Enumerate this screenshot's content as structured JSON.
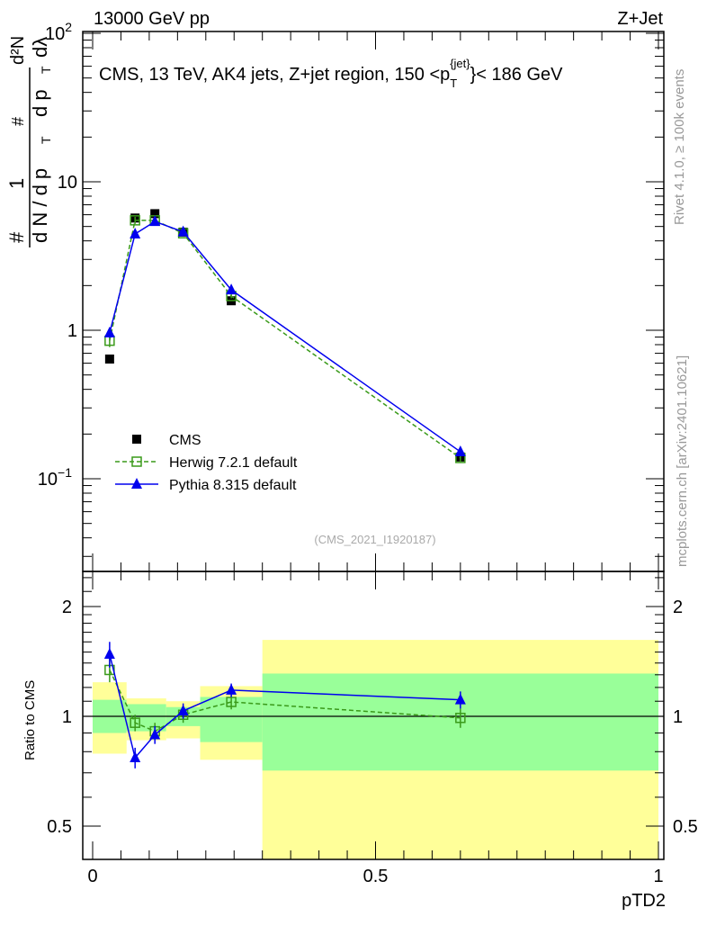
{
  "header": {
    "left": "13000 GeV pp",
    "right": "Z+Jet"
  },
  "side_labels": {
    "rivet": "Rivet 4.1.0, ≥ 100k events",
    "mcplots": "mcplots.cern.ch [arXiv:2401.10621]"
  },
  "chart_data": [
    {
      "type": "line",
      "title": "CMS, 13 TeV, AK4 jets, Z+jet region, 150 <p_T^{jet}< 186 GeV",
      "title_parts": {
        "a": "CMS, 13 TeV, AK4 jets, Z+jet region, 150 <p",
        "sub": "T",
        "sup": "{jet}",
        "b": "}< 186 GeV"
      },
      "ylabel": "1/N dN/dpT d2N/dpT dlambda",
      "ylabel_parts": {
        "hash": "#",
        "one": "1",
        "den": "d N / d p",
        "T": "T",
        "num_top": "d²N",
        "num_bot": "d p",
        "dl": "dλ"
      },
      "yscale": "log",
      "ylim": [
        0.0238,
        105
      ],
      "xlim": [
        -0.03,
        1.01
      ],
      "yticks": [
        {
          "v": 100,
          "label": "10",
          "sup": "2"
        },
        {
          "v": 10,
          "label": "10",
          "sup": ""
        },
        {
          "v": 1,
          "label": "1",
          "sup": ""
        },
        {
          "v": 0.1,
          "label": "10",
          "sup": "−1"
        }
      ],
      "watermark": "(CMS_2021_I1920187)",
      "legend_position": "bottom-left",
      "x": [
        0.03,
        0.075,
        0.11,
        0.16,
        0.245,
        0.65
      ],
      "series": [
        {
          "name": "CMS",
          "color": "#000000",
          "marker": "square-filled",
          "values": [
            0.64,
            5.7,
            6.1,
            4.58,
            1.58,
            0.14
          ],
          "errors": [
            0.02,
            0.15,
            0.15,
            0.1,
            0.04,
            0.005
          ]
        },
        {
          "name": "Herwig 7.2.1 default",
          "color": "#3a9a1a",
          "marker": "square-open",
          "dashed": true,
          "values": [
            0.85,
            5.5,
            5.5,
            4.5,
            1.7,
            0.138
          ],
          "errors": [
            0.08,
            0.3,
            0.3,
            0.15,
            0.06,
            0.008
          ]
        },
        {
          "name": "Pythia 8.315 default",
          "color": "#0000ee",
          "marker": "triangle",
          "values": [
            0.96,
            4.45,
            5.4,
            4.6,
            1.87,
            0.152
          ],
          "errors": [
            0.07,
            0.25,
            0.25,
            0.15,
            0.06,
            0.01
          ]
        }
      ]
    },
    {
      "type": "line",
      "ylabel": "Ratio to CMS",
      "xlabel": "pTD2",
      "yscale": "log",
      "ylim": [
        0.405,
        2.5
      ],
      "yticks": [
        {
          "v": 2,
          "label": "2"
        },
        {
          "v": 1,
          "label": "1"
        },
        {
          "v": 0.5,
          "label": "0.5"
        }
      ],
      "xticks": [
        {
          "v": 0,
          "label": "0"
        },
        {
          "v": 0.5,
          "label": "0.5"
        },
        {
          "v": 1,
          "label": "1"
        }
      ],
      "bands": {
        "edges": [
          0,
          0.06,
          0.13,
          0.19,
          0.3,
          1.0
        ],
        "yellow": [
          [
            0.79,
            1.24
          ],
          [
            0.86,
            1.12
          ],
          [
            0.87,
            1.1
          ],
          [
            0.76,
            1.21
          ],
          [
            0.4,
            1.62
          ]
        ],
        "green": [
          [
            0.9,
            1.11
          ],
          [
            0.91,
            1.08
          ],
          [
            0.94,
            1.06
          ],
          [
            0.85,
            1.13
          ],
          [
            0.71,
            1.31
          ]
        ],
        "colors": {
          "yellow": "#ffff99",
          "green": "#99ff99"
        }
      },
      "x": [
        0.03,
        0.075,
        0.11,
        0.16,
        0.245,
        0.65
      ],
      "series": [
        {
          "name": "Herwig 7.2.1 default",
          "color": "#3a9a1a",
          "values": [
            1.34,
            0.96,
            0.91,
            1.01,
            1.095,
            0.99
          ],
          "errors": [
            0.1,
            0.05,
            0.05,
            0.05,
            0.05,
            0.06
          ]
        },
        {
          "name": "Pythia 8.315 default",
          "color": "#0000ee",
          "values": [
            1.48,
            0.77,
            0.89,
            1.035,
            1.18,
            1.11
          ],
          "errors": [
            0.12,
            0.05,
            0.05,
            0.05,
            0.05,
            0.06
          ]
        }
      ]
    }
  ]
}
